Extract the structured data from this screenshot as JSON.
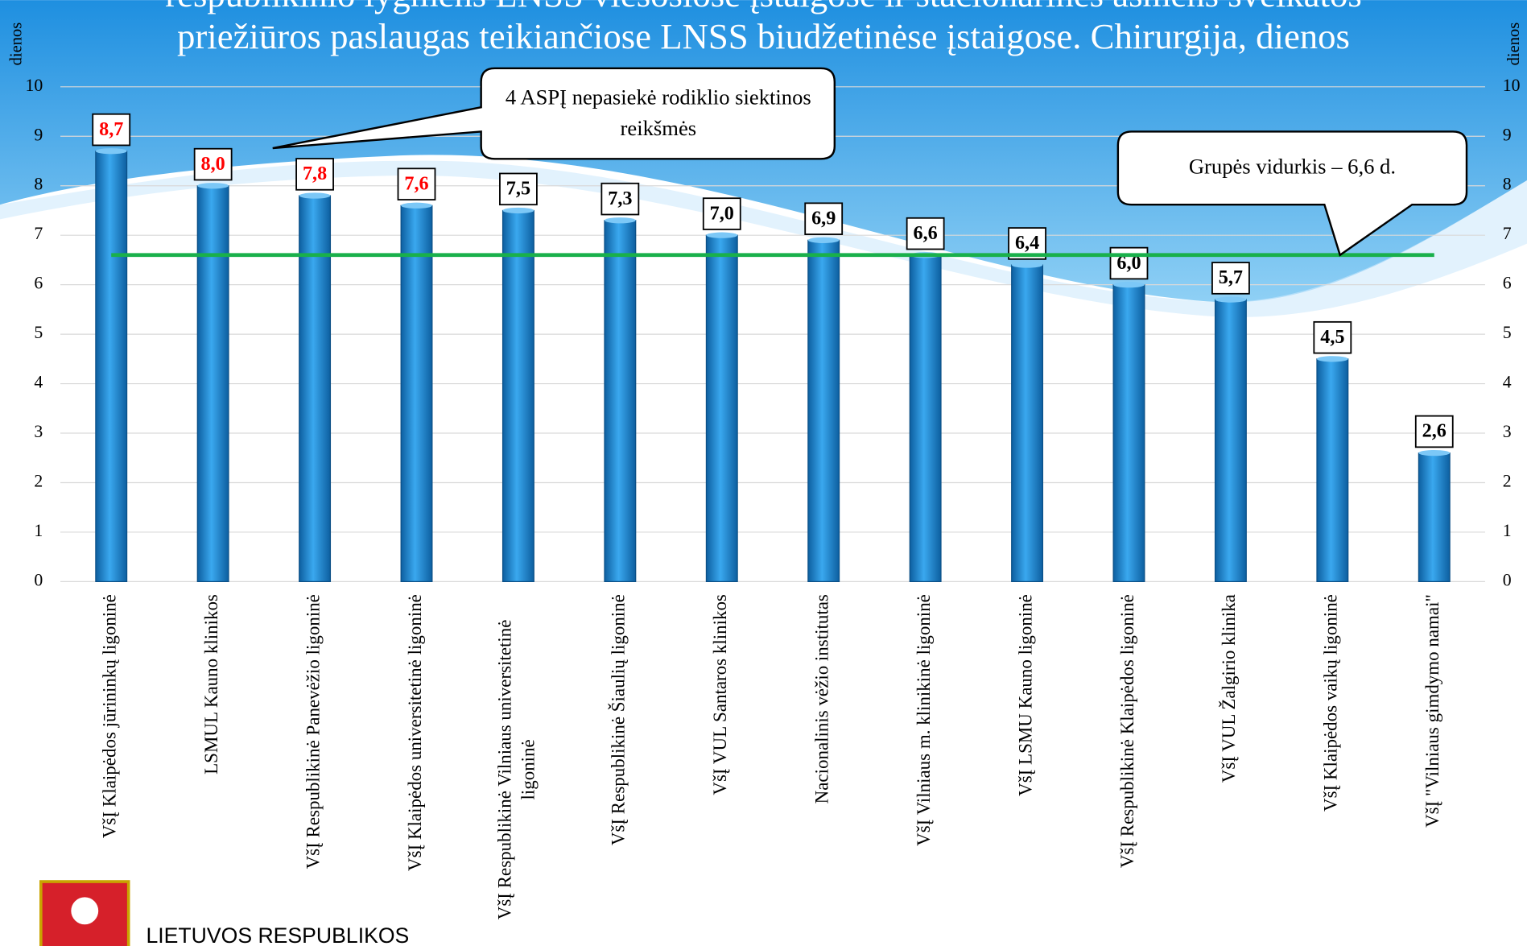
{
  "chart_data": {
    "type": "bar",
    "title_lines": [
      "respublikinio lygmens LNSS viešosiose įstaigose ir stacionarines asmens sveikatos",
      "priežiūros paslaugas teikiančiose LNSS biudžetinėse įstaigose. Chirurgija, dienos"
    ],
    "y_label": "dienos",
    "y2_label": "dienos",
    "categories": [
      "VšĮ Klaipėdos jūrininkų ligoninė",
      "LSMUL Kauno klinikos",
      "VšĮ Respublikinė Panevėžio ligoninė",
      "VšĮ Klaipėdos universitetinė ligoninė",
      "VšĮ Respublikinė Vilniaus universitetinė ligoninė",
      "VšĮ Respublikinė Šiaulių ligoninė",
      "VšĮ VUL Santaros klinikos",
      "Nacionalinis vėžio institutas",
      "VšĮ Vilniaus m. klinikinė ligoninė",
      "VšĮ LSMU Kauno ligoninė",
      "VšĮ Respublikinė Klaipėdos ligoninė",
      "VšĮ VUL Žalgirio klinika",
      "VšĮ Klaipėdos vaikų ligoninė",
      "VšĮ \"Vilniaus gimdymo namai\""
    ],
    "values": [
      8.7,
      8.0,
      7.8,
      7.6,
      7.5,
      7.3,
      7.0,
      6.9,
      6.6,
      6.4,
      6.0,
      5.7,
      4.5,
      2.6
    ],
    "value_labels": [
      "8,7",
      "8,0",
      "7,8",
      "7,6",
      "7,5",
      "7,3",
      "7,0",
      "6,9",
      "6,6",
      "6,4",
      "6,0",
      "5,7",
      "4,5",
      "2,6"
    ],
    "value_label_colors": [
      "#ff0000",
      "#ff0000",
      "#ff0000",
      "#ff0000",
      "#000000",
      "#000000",
      "#000000",
      "#000000",
      "#000000",
      "#000000",
      "#000000",
      "#000000",
      "#000000",
      "#000000"
    ],
    "color": "#2a8fd8",
    "average": 6.6,
    "average_color": "#19b04b",
    "ylim": [
      0,
      10
    ],
    "yticks": [
      0,
      1,
      2,
      3,
      4,
      5,
      6,
      7,
      8,
      9,
      10
    ],
    "grid": true,
    "annotations": [
      "4 ASPĮ nepasiekė rodiklio siektinos reikšmės",
      "Grupės vidurkis – 6,6 d."
    ],
    "footer": "LIETUVOS RESPUBLIKOS"
  }
}
